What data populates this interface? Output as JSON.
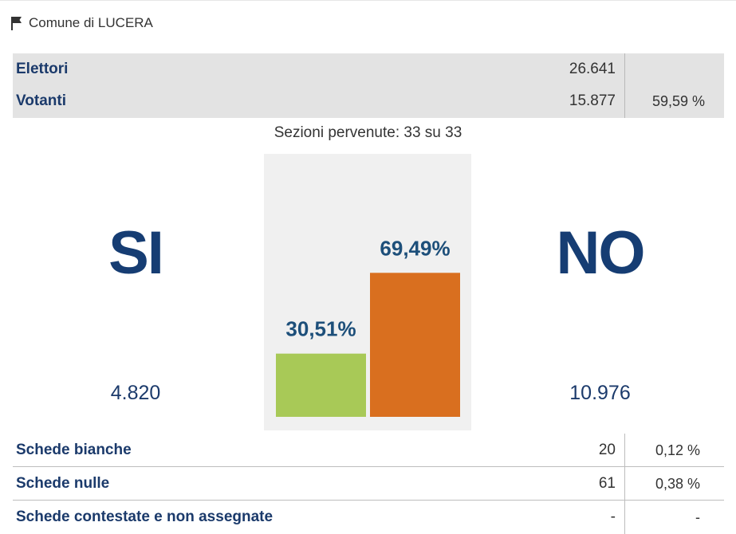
{
  "header": {
    "title": "Comune di LUCERA",
    "icon": "flag-icon"
  },
  "stats": {
    "elettori_label": "Elettori",
    "elettori_value": "26.641",
    "votanti_label": "Votanti",
    "votanti_value": "15.877",
    "votanti_pct": "59,59 %"
  },
  "sezioni": "Sezioni pervenute: 33 su 33",
  "result": {
    "si_label": "SI",
    "no_label": "NO",
    "si_votes": "4.820",
    "no_votes": "10.976"
  },
  "chart_data": {
    "type": "bar",
    "categories": [
      "SI",
      "NO"
    ],
    "values": [
      30.51,
      69.49
    ],
    "value_labels": [
      "30,51%",
      "69,49%"
    ],
    "colors": [
      "#a8c957",
      "#d96f1f"
    ],
    "ylim": [
      0,
      100
    ],
    "grid": false,
    "title": "",
    "xlabel": "",
    "ylabel": ""
  },
  "table": {
    "rows": [
      {
        "label": "Schede bianche",
        "value": "20",
        "pct": "0,12 %"
      },
      {
        "label": "Schede nulle",
        "value": "61",
        "pct": "0,38 %"
      },
      {
        "label": "Schede contestate e non assegnate",
        "value": "-",
        "pct": "-"
      }
    ]
  }
}
